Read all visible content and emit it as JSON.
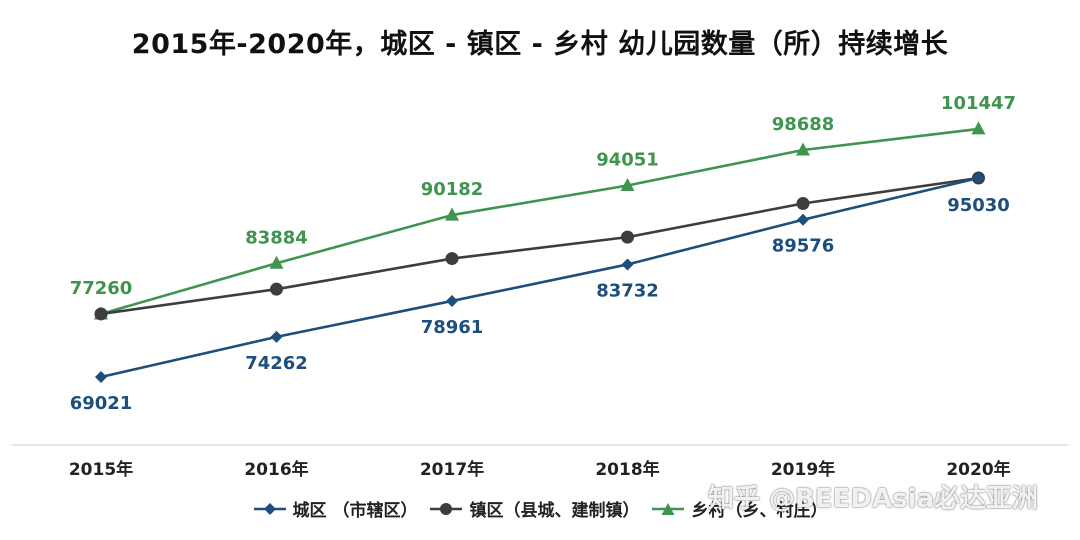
{
  "colors": {
    "urban": "#1d4e7c",
    "town": "#3d3d3d",
    "rural": "#3f9450",
    "axis": "#cccccc"
  },
  "watermark": "知乎 @BEEDAsia必达亚洲",
  "chart_data": {
    "type": "line",
    "title": "2015年-2020年，城区 - 镇区 - 乡村 幼儿园数量（所）持续增长",
    "categories": [
      "2015年",
      "2016年",
      "2017年",
      "2018年",
      "2019年",
      "2020年"
    ],
    "xlabel": "",
    "ylabel": "",
    "grid": false,
    "legend_position": "bottom",
    "series": [
      {
        "name": "城区 （市辖区）",
        "key": "urban",
        "marker": "diamond",
        "values": [
          69021,
          74262,
          78961,
          83732,
          89576,
          95030
        ],
        "labels": [
          "69021",
          "74262",
          "78961",
          "83732",
          "89576",
          "95030"
        ],
        "label_mask": [
          true,
          true,
          true,
          true,
          true,
          true
        ]
      },
      {
        "name": "镇区（县城、建制镇）",
        "key": "town",
        "marker": "circle",
        "values": [
          77260,
          80500,
          84500,
          87300,
          91700,
          95030
        ],
        "labels": [
          "",
          "",
          "",
          "",
          "",
          ""
        ],
        "label_mask": [
          false,
          false,
          false,
          false,
          false,
          false
        ]
      },
      {
        "name": "乡村（乡、村庄）",
        "key": "rural",
        "marker": "triangle",
        "values": [
          77260,
          83884,
          90182,
          94051,
          98688,
          101447
        ],
        "labels": [
          "77260",
          "83884",
          "90182",
          "94051",
          "98688",
          "101447"
        ],
        "label_mask": [
          true,
          true,
          true,
          true,
          true,
          true
        ]
      }
    ]
  }
}
